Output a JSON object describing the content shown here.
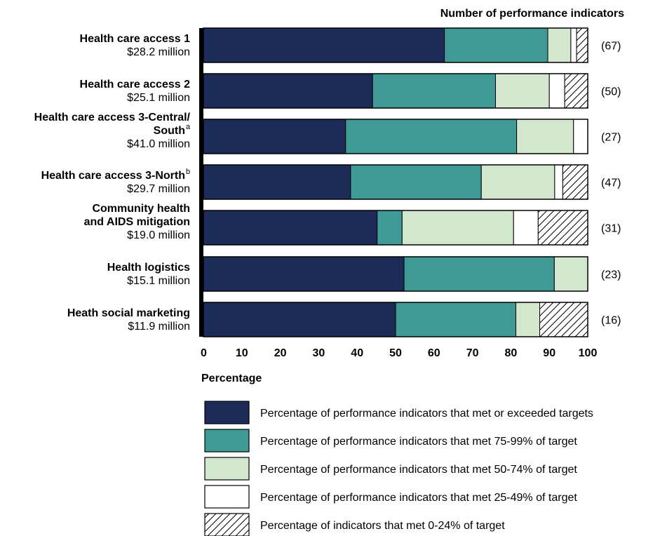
{
  "chart_data": {
    "type": "bar",
    "orientation": "horizontal",
    "stacked": true,
    "title": "",
    "count_header": "Number of performance indicators",
    "xlabel": "Percentage",
    "ylabel": "",
    "xlim": [
      0,
      100
    ],
    "x_ticks": [
      "0",
      "10",
      "20",
      "30",
      "40",
      "50",
      "60",
      "70",
      "80",
      "90",
      "100"
    ],
    "grid": false,
    "legend_position": "bottom",
    "categories": [
      {
        "name_lines": [
          "Health care access 1"
        ],
        "superscript": "",
        "amount": "$28.2 million",
        "count": "(67)"
      },
      {
        "name_lines": [
          "Health care access 2"
        ],
        "superscript": "",
        "amount": "$25.1 million",
        "count": "(50)"
      },
      {
        "name_lines": [
          "Health care access 3-Central/",
          "South"
        ],
        "superscript": "a",
        "amount": "$41.0 million",
        "count": "(27)"
      },
      {
        "name_lines": [
          "Health care access 3-North"
        ],
        "superscript": "b",
        "amount": "$29.7 million",
        "count": "(47)"
      },
      {
        "name_lines": [
          "Community health",
          "and AIDS mitigation"
        ],
        "superscript": "",
        "amount": "$19.0 million",
        "count": "(31)"
      },
      {
        "name_lines": [
          "Health logistics"
        ],
        "superscript": "",
        "amount": "$15.1 million",
        "count": "(23)"
      },
      {
        "name_lines": [
          "Heath social marketing"
        ],
        "superscript": "",
        "amount": "$11.9 million",
        "count": "(16)"
      }
    ],
    "series": [
      {
        "name": "Percentage of performance indicators that met or exceeded targets",
        "color": "#1c2b57",
        "pattern": "solid",
        "values": [
          62.7,
          44.0,
          37.0,
          38.3,
          45.2,
          52.2,
          50.0
        ]
      },
      {
        "name": "Percentage of performance indicators that met 75-99% of target",
        "color": "#3f9994",
        "pattern": "solid",
        "values": [
          26.9,
          32.0,
          44.5,
          34.0,
          6.5,
          39.1,
          31.3
        ]
      },
      {
        "name": "Percentage of performance indicators that met 50-74% of target",
        "color": "#d3e7cf",
        "pattern": "solid",
        "values": [
          6.0,
          14.0,
          14.8,
          19.1,
          29.0,
          8.7,
          6.2
        ]
      },
      {
        "name": "Percentage of performance indicators that met 25-49% of target",
        "color": "#ffffff",
        "pattern": "solid",
        "values": [
          1.5,
          4.0,
          3.7,
          2.1,
          6.4,
          0,
          0
        ]
      },
      {
        "name": "Percentage of indicators that met 0-24% of target",
        "color": "#ffffff",
        "pattern": "hatch",
        "values": [
          2.9,
          6.0,
          0,
          6.5,
          12.9,
          0,
          12.5
        ]
      }
    ]
  }
}
